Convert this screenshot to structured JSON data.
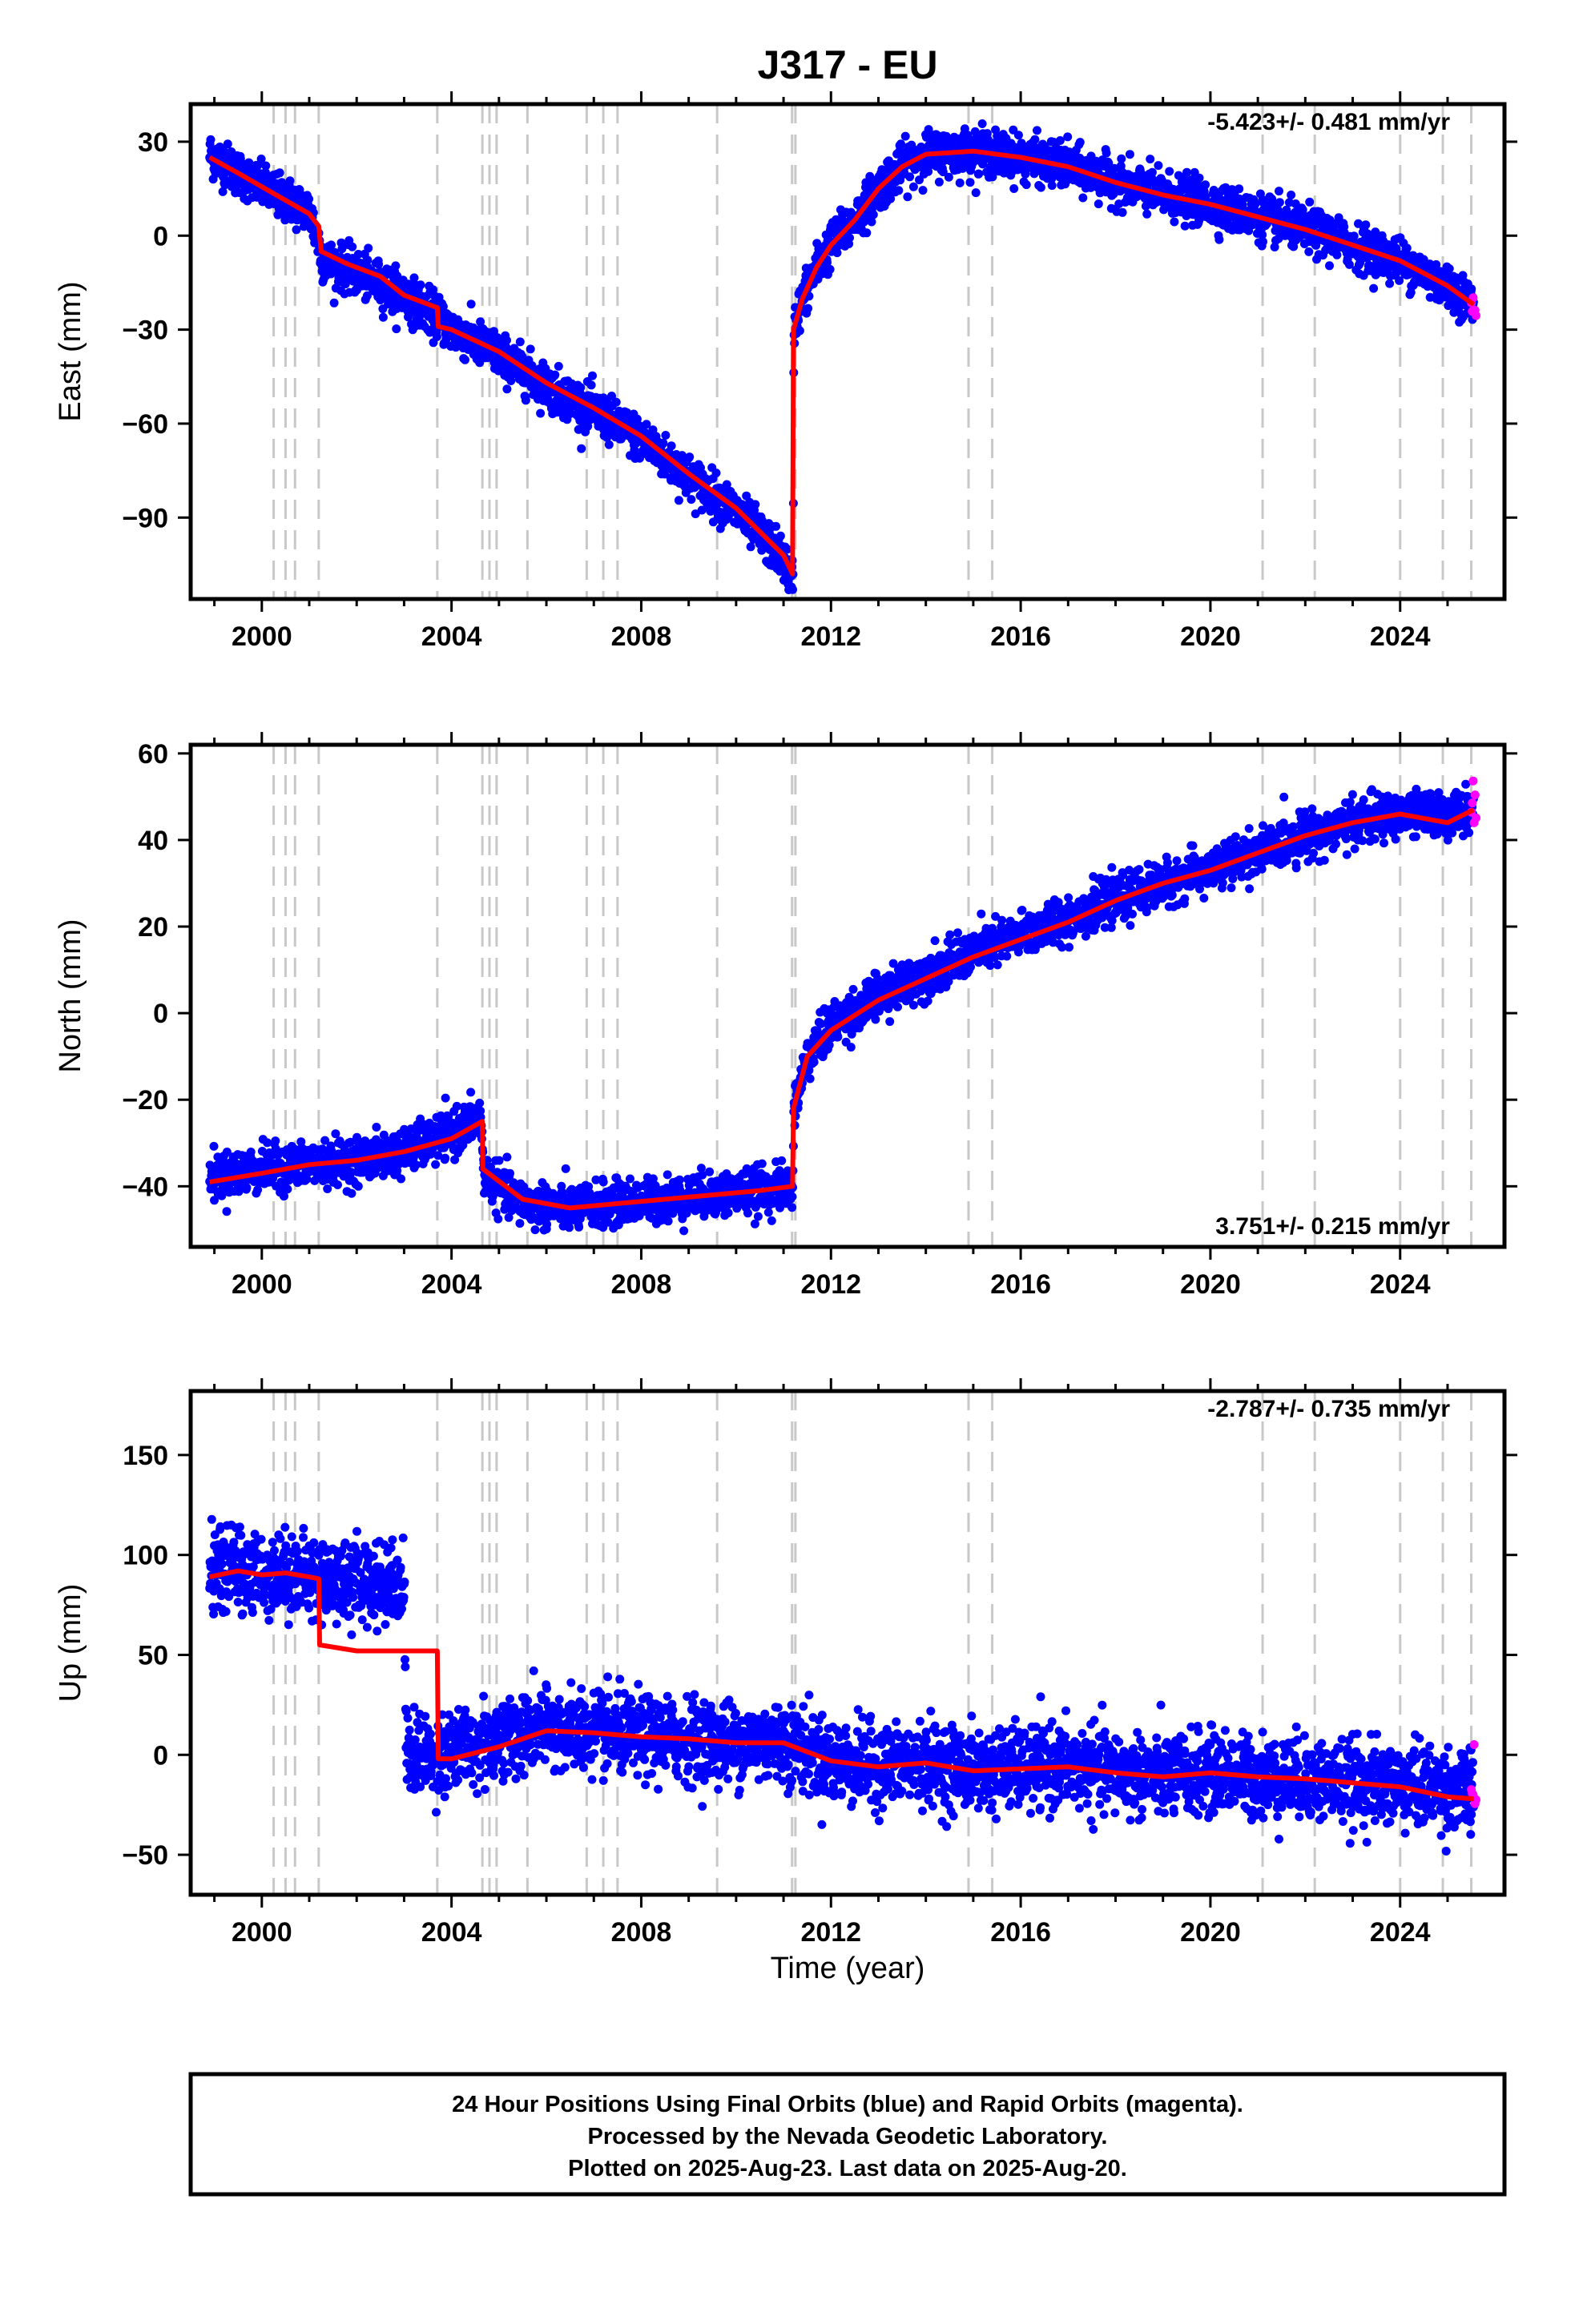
{
  "title": "J317 - EU",
  "xlabel": "Time (year)",
  "colors": {
    "final": "#0000ff",
    "rapid": "#ff00ff",
    "model": "#ff0000",
    "event": "#c8c8c8"
  },
  "footer": {
    "line1": "24 Hour Positions Using Final Orbits (blue) and Rapid Orbits (magenta).",
    "line2": "Processed by the Nevada Geodetic Laboratory.",
    "line3": "Plotted on 2025-Aug-23. Last data on 2025-Aug-20."
  },
  "chart_data": [
    {
      "type": "scatter",
      "ylabel": "East (mm)",
      "rate": "-5.423+/- 0.481 mm/yr",
      "rate_position": "top-right",
      "xlim": [
        1998.5,
        2026.2
      ],
      "ylim": [
        -116,
        42
      ],
      "xticks": [
        2000,
        2004,
        2008,
        2012,
        2016,
        2020,
        2024
      ],
      "yticks": [
        -90,
        -60,
        -30,
        0,
        30
      ],
      "grid": false,
      "event_lines": [
        2000.25,
        2000.5,
        2000.7,
        2001.2,
        2003.7,
        2004.65,
        2004.8,
        2004.95,
        2005.6,
        2006.85,
        2007.2,
        2007.5,
        2009.6,
        2011.18,
        2011.25,
        2014.9,
        2015.4,
        2021.1,
        2022.2,
        2024.0,
        2024.9,
        2025.5
      ],
      "series": [
        {
          "name": "final orbits (blue)",
          "style": "points",
          "color": "#0000ff",
          "spread": 3.5,
          "x": [
            1998.9,
            1999.5,
            2000.3,
            2001.0,
            2001.3,
            2002.0,
            2003.0,
            2003.7,
            2004.0,
            2005.0,
            2006.0,
            2007.0,
            2008.0,
            2009.0,
            2010.0,
            2011.0,
            2011.2,
            2011.22,
            2011.4,
            2011.7,
            2012.0,
            2012.5,
            2013.0,
            2013.5,
            2014.0,
            2015.0,
            2016.0,
            2017.0,
            2018.0,
            2019.0,
            2020.0,
            2021.0,
            2022.0,
            2023.0,
            2024.0,
            2024.5,
            2025.0,
            2025.55
          ],
          "y": [
            26,
            20,
            13,
            8,
            -8,
            -12,
            -19,
            -26,
            -30,
            -38,
            -48,
            -56,
            -65,
            -77,
            -88,
            -103,
            -111,
            -28,
            -20,
            -10,
            -3,
            5,
            15,
            22,
            26,
            27,
            25,
            22,
            17,
            13,
            10,
            6,
            2,
            -3,
            -8,
            -12,
            -16,
            -22
          ]
        },
        {
          "name": "rapid orbits (magenta)",
          "style": "points",
          "color": "#ff00ff",
          "spread": 1.5,
          "x": [
            2025.5,
            2025.52,
            2025.54,
            2025.56,
            2025.58,
            2025.6
          ],
          "y": [
            -19,
            -21,
            -23,
            -24,
            -22,
            -26
          ]
        },
        {
          "name": "model",
          "style": "line",
          "color": "#ff0000",
          "x": [
            1998.9,
            1999.5,
            2000.3,
            2001.0,
            2001.2,
            2001.25,
            2001.8,
            2002.5,
            2003.0,
            2003.7,
            2003.72,
            2004.0,
            2005.0,
            2006.0,
            2007.0,
            2008.0,
            2009.0,
            2010.0,
            2011.0,
            2011.19,
            2011.21,
            2011.4,
            2011.7,
            2012.0,
            2012.5,
            2013.0,
            2013.5,
            2014.0,
            2015.0,
            2016.0,
            2017.0,
            2018.0,
            2019.0,
            2020.0,
            2021.0,
            2022.0,
            2023.0,
            2024.0,
            2024.5,
            2025.0,
            2025.55
          ],
          "y": [
            25,
            20,
            13,
            7,
            3,
            -5,
            -9,
            -13,
            -19,
            -23,
            -29,
            -30,
            -37,
            -47,
            -55,
            -64,
            -76,
            -87,
            -102,
            -108,
            -30,
            -20,
            -10,
            -3,
            5,
            15,
            22,
            26,
            27,
            25,
            22,
            17,
            13,
            10,
            6,
            2,
            -3,
            -8,
            -12,
            -16,
            -22
          ]
        }
      ]
    },
    {
      "type": "scatter",
      "ylabel": "North (mm)",
      "rate": "3.751+/- 0.215 mm/yr",
      "rate_position": "bottom-right",
      "xlim": [
        1998.5,
        2026.2
      ],
      "ylim": [
        -54,
        62
      ],
      "xticks": [
        2000,
        2004,
        2008,
        2012,
        2016,
        2020,
        2024
      ],
      "yticks": [
        -40,
        -20,
        0,
        20,
        40,
        60
      ],
      "grid": false,
      "event_lines": [
        2000.25,
        2000.5,
        2000.7,
        2001.2,
        2003.7,
        2004.65,
        2004.8,
        2004.95,
        2005.6,
        2006.85,
        2007.2,
        2007.5,
        2009.6,
        2011.18,
        2011.25,
        2014.9,
        2015.4,
        2021.1,
        2022.2,
        2024.0,
        2024.9,
        2025.5
      ],
      "series": [
        {
          "name": "final orbits (blue)",
          "style": "points",
          "color": "#0000ff",
          "spread": 2.5,
          "x": [
            1998.9,
            2000.0,
            2001.0,
            2002.0,
            2003.0,
            2004.0,
            2004.6,
            2004.7,
            2005.5,
            2006.5,
            2007.5,
            2008.5,
            2009.5,
            2010.5,
            2011.15,
            2011.2,
            2011.22,
            2011.5,
            2012.0,
            2013.0,
            2014.0,
            2015.0,
            2016.0,
            2017.0,
            2018.0,
            2019.0,
            2020.0,
            2021.0,
            2022.0,
            2023.0,
            2024.0,
            2025.0,
            2025.55
          ],
          "y": [
            -38,
            -36,
            -35,
            -34,
            -32,
            -28,
            -24,
            -38,
            -44,
            -45,
            -44,
            -43,
            -42,
            -41,
            -40,
            -40,
            -22,
            -10,
            -3,
            4,
            9,
            14,
            18,
            22,
            26,
            30,
            33,
            37,
            41,
            44,
            46,
            46,
            47
          ]
        },
        {
          "name": "rapid orbits (magenta)",
          "style": "points",
          "color": "#ff00ff",
          "spread": 1.5,
          "x": [
            2025.5,
            2025.52,
            2025.54,
            2025.56,
            2025.58,
            2025.6
          ],
          "y": [
            46,
            48,
            50,
            45,
            51,
            47
          ]
        },
        {
          "name": "model",
          "style": "line",
          "color": "#ff0000",
          "x": [
            1998.9,
            2000.0,
            2001.0,
            2002.0,
            2003.0,
            2004.0,
            2004.65,
            2004.66,
            2005.5,
            2006.5,
            2007.5,
            2008.5,
            2009.5,
            2010.5,
            2011.19,
            2011.21,
            2011.5,
            2012.0,
            2013.0,
            2014.0,
            2015.0,
            2016.0,
            2017.0,
            2018.0,
            2019.0,
            2020.0,
            2021.0,
            2022.0,
            2023.0,
            2024.0,
            2025.0,
            2025.55
          ],
          "y": [
            -39,
            -37,
            -35,
            -34,
            -32,
            -29,
            -25,
            -36,
            -43,
            -45,
            -44,
            -43,
            -42,
            -41,
            -40,
            -22,
            -10,
            -4,
            3,
            8,
            13,
            17,
            21,
            26,
            30,
            33,
            37,
            41,
            44,
            46,
            44,
            47
          ]
        }
      ]
    },
    {
      "type": "scatter",
      "ylabel": "Up (mm)",
      "rate": "-2.787+/- 0.735 mm/yr",
      "rate_position": "top-right",
      "xlim": [
        1998.5,
        2026.2
      ],
      "ylim": [
        -70,
        182
      ],
      "xticks": [
        2000,
        2004,
        2008,
        2012,
        2016,
        2020,
        2024
      ],
      "yticks": [
        -50,
        0,
        50,
        100,
        150
      ],
      "grid": false,
      "event_lines": [
        2000.25,
        2000.5,
        2000.7,
        2001.2,
        2003.7,
        2004.65,
        2004.8,
        2004.95,
        2005.6,
        2006.85,
        2007.2,
        2007.5,
        2009.6,
        2011.18,
        2011.25,
        2014.9,
        2015.4,
        2021.1,
        2022.2,
        2024.0,
        2024.9,
        2025.5
      ],
      "series": [
        {
          "name": "final orbits (blue)",
          "style": "points",
          "color": "#0000ff",
          "spread": 10,
          "x": [
            1998.9,
            1999.5,
            2000.0,
            2000.5,
            2001.0,
            2001.5,
            2002.0,
            2002.5,
            2003.0,
            2003.05,
            2004.0,
            2005.0,
            2006.0,
            2007.0,
            2008.0,
            2009.0,
            2010.0,
            2011.0,
            2012.0,
            2013.0,
            2014.0,
            2015.0,
            2016.0,
            2017.0,
            2018.0,
            2019.0,
            2020.0,
            2021.0,
            2022.0,
            2023.0,
            2024.0,
            2025.0,
            2025.55
          ],
          "y": [
            92,
            93,
            90,
            91,
            89,
            88,
            87,
            87,
            86,
            0,
            1,
            8,
            13,
            11,
            9,
            8,
            6,
            7,
            -3,
            -6,
            -4,
            -8,
            -7,
            -6,
            -9,
            -11,
            -9,
            -11,
            -12,
            -14,
            -15,
            -17,
            -20
          ]
        },
        {
          "name": "rapid orbits (magenta)",
          "style": "points",
          "color": "#ff00ff",
          "spread": 5,
          "x": [
            2025.5,
            2025.52,
            2025.54,
            2025.56,
            2025.58,
            2025.6
          ],
          "y": [
            -18,
            -12,
            -25,
            5,
            -28,
            -20
          ]
        },
        {
          "name": "model",
          "style": "line",
          "color": "#ff0000",
          "x": [
            1998.9,
            1999.5,
            2000.0,
            2000.5,
            2001.0,
            2001.2,
            2001.22,
            2002.0,
            2003.0,
            2003.7,
            2003.72,
            2004.0,
            2005.0,
            2006.0,
            2007.0,
            2008.0,
            2009.0,
            2010.0,
            2011.0,
            2012.0,
            2013.0,
            2014.0,
            2015.0,
            2016.0,
            2017.0,
            2018.0,
            2019.0,
            2020.0,
            2021.0,
            2022.0,
            2023.0,
            2024.0,
            2025.0,
            2025.55
          ],
          "y": [
            89,
            92,
            90,
            91,
            89,
            88,
            55,
            52,
            52,
            52,
            -2,
            -2,
            4,
            12,
            11,
            9,
            8,
            6,
            6,
            -3,
            -6,
            -4,
            -8,
            -7,
            -6,
            -9,
            -11,
            -9,
            -11,
            -12,
            -14,
            -16,
            -21,
            -22
          ]
        }
      ]
    }
  ]
}
